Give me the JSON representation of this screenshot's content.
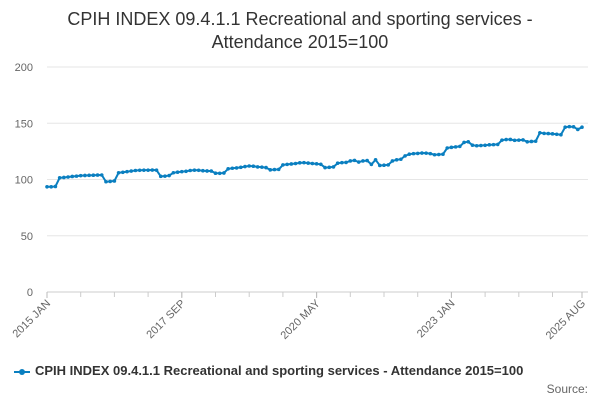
{
  "chart_data": {
    "type": "line",
    "title_lines": [
      "CPIH INDEX 09.4.1.1 Recreational and sporting services -",
      "Attendance 2015=100"
    ],
    "xlabel": "",
    "ylabel": "",
    "ylim": [
      0,
      200
    ],
    "yticks": [
      0,
      50,
      100,
      150,
      200
    ],
    "grid": true,
    "legend_position": "bottom",
    "x_start": "2015 JAN",
    "x_end": "2025 AUG",
    "x_tick_labels": [
      {
        "label": "2015 JAN",
        "month_index": 0
      },
      {
        "label": "2017 SEP",
        "month_index": 32
      },
      {
        "label": "2020 MAY",
        "month_index": 64
      },
      {
        "label": "2023 JAN",
        "month_index": 96
      },
      {
        "label": "2025 AUG",
        "month_index": 127
      }
    ],
    "series": [
      {
        "name": "CPIH INDEX 09.4.1.1 Recreational and sporting services - Attendance 2015=100",
        "color": "#0a7fc0",
        "values": [
          93.5,
          93.5,
          93.8,
          101.5,
          101.8,
          102.2,
          102.7,
          103.0,
          103.4,
          103.6,
          103.7,
          103.8,
          103.9,
          104.0,
          98.0,
          98.3,
          98.7,
          106.0,
          106.4,
          107.0,
          107.5,
          108.0,
          108.2,
          108.3,
          108.3,
          108.4,
          108.3,
          102.8,
          103.0,
          103.5,
          106.0,
          106.5,
          107.0,
          107.3,
          108.0,
          108.3,
          108.2,
          107.8,
          107.6,
          107.5,
          105.6,
          105.5,
          105.8,
          109.5,
          110.0,
          110.3,
          110.8,
          111.5,
          112.0,
          111.8,
          111.2,
          111.0,
          110.6,
          108.6,
          108.8,
          109.0,
          113.0,
          113.4,
          113.8,
          114.2,
          114.8,
          115.0,
          114.6,
          114.2,
          113.9,
          113.5,
          110.6,
          110.8,
          111.2,
          114.5,
          115.0,
          115.2,
          116.5,
          117.0,
          115.5,
          116.5,
          116.8,
          113.4,
          117.5,
          112.5,
          112.7,
          113.0,
          116.5,
          117.5,
          118.0,
          121.0,
          122.5,
          123.0,
          123.2,
          123.5,
          123.4,
          123.0,
          122.0,
          122.2,
          122.5,
          128.0,
          128.6,
          129.0,
          129.4,
          133.0,
          133.5,
          130.5,
          130.0,
          130.2,
          130.4,
          130.8,
          131.0,
          131.2,
          135.0,
          135.5,
          135.6,
          134.8,
          135.0,
          135.2,
          133.5,
          133.8,
          134.0,
          141.5,
          141.0,
          140.8,
          140.6,
          140.2,
          139.8,
          146.5,
          147.0,
          146.8,
          144.5,
          146.5
        ]
      }
    ]
  },
  "legend": {
    "label": "CPIH INDEX 09.4.1.1 Recreational and sporting services - Attendance 2015=100"
  },
  "footer": {
    "source_label": "Source:"
  }
}
